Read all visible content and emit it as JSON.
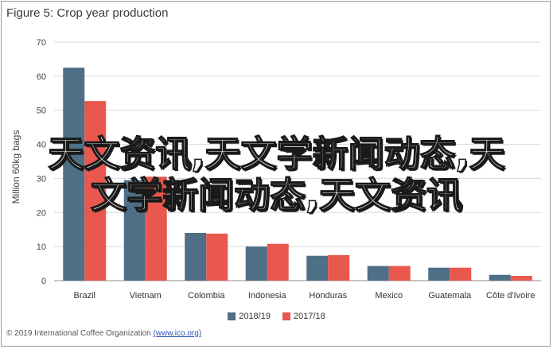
{
  "chart_data": {
    "type": "bar",
    "title": "Figure 5: Crop year production",
    "ylabel": "Million 60kg bags",
    "xlabel": "",
    "ylim": [
      0,
      70
    ],
    "yticks": [
      0,
      10,
      20,
      30,
      40,
      50,
      60,
      70
    ],
    "grid": true,
    "legend_position": "bottom",
    "categories": [
      "Brazil",
      "Vietnam",
      "Colombia",
      "Indonesia",
      "Honduras",
      "Mexico",
      "Guatemala",
      "Côte d'Ivoire"
    ],
    "series": [
      {
        "name": "2018/19",
        "color": "#4f6f86",
        "values": [
          62.5,
          29.5,
          14.0,
          10.0,
          7.3,
          4.3,
          3.8,
          1.7
        ]
      },
      {
        "name": "2017/18",
        "color": "#e8584e",
        "values": [
          52.7,
          30.5,
          13.8,
          10.8,
          7.5,
          4.3,
          3.8,
          1.4
        ]
      }
    ]
  },
  "footer": {
    "copyright": "© 2019 International Coffee Organization",
    "link": "(www.ico.org)"
  },
  "watermark": {
    "line1": "天文资讯,天文学新闻动态,天",
    "line2": "文学新闻动态,天文资讯"
  }
}
